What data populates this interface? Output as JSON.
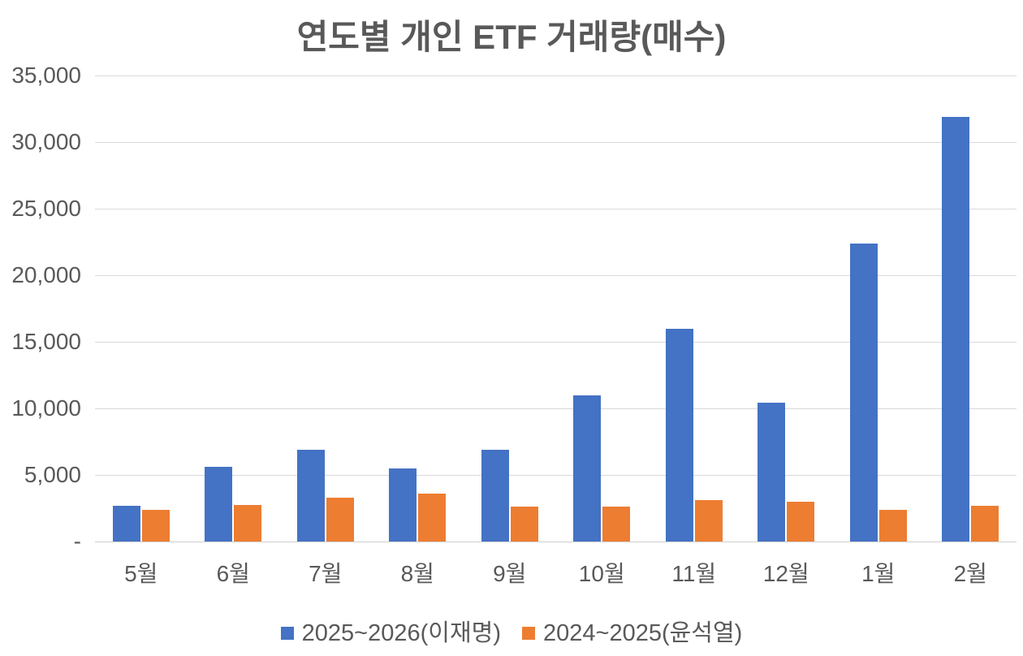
{
  "chart_data": {
    "type": "bar",
    "title": "연도별 개인 ETF 거래량(매수)",
    "categories": [
      "5월",
      "6월",
      "7월",
      "8월",
      "9월",
      "10월",
      "11월",
      "12월",
      "1월",
      "2월"
    ],
    "series": [
      {
        "name": "2025~2026(이재명)",
        "color": "#4472C4",
        "values": [
          2700,
          5600,
          6900,
          5500,
          6900,
          11000,
          16000,
          10400,
          22400,
          31900
        ]
      },
      {
        "name": "2024~2025(윤석열)",
        "color": "#ED7D31",
        "values": [
          2350,
          2750,
          3300,
          3600,
          2650,
          2650,
          3100,
          3000,
          2350,
          2700
        ]
      }
    ],
    "xlabel": "",
    "ylabel": "",
    "ylim": [
      0,
      35000
    ],
    "ytick_step": 5000,
    "ytick_labels": [
      "-",
      "5,000",
      "10,000",
      "15,000",
      "20,000",
      "25,000",
      "30,000",
      "35,000"
    ],
    "grid": true,
    "legend_position": "bottom"
  },
  "colors": {
    "title_text": "#595959",
    "axis_text": "#595959",
    "gridline": "#d9d9d9",
    "background": "#ffffff"
  }
}
